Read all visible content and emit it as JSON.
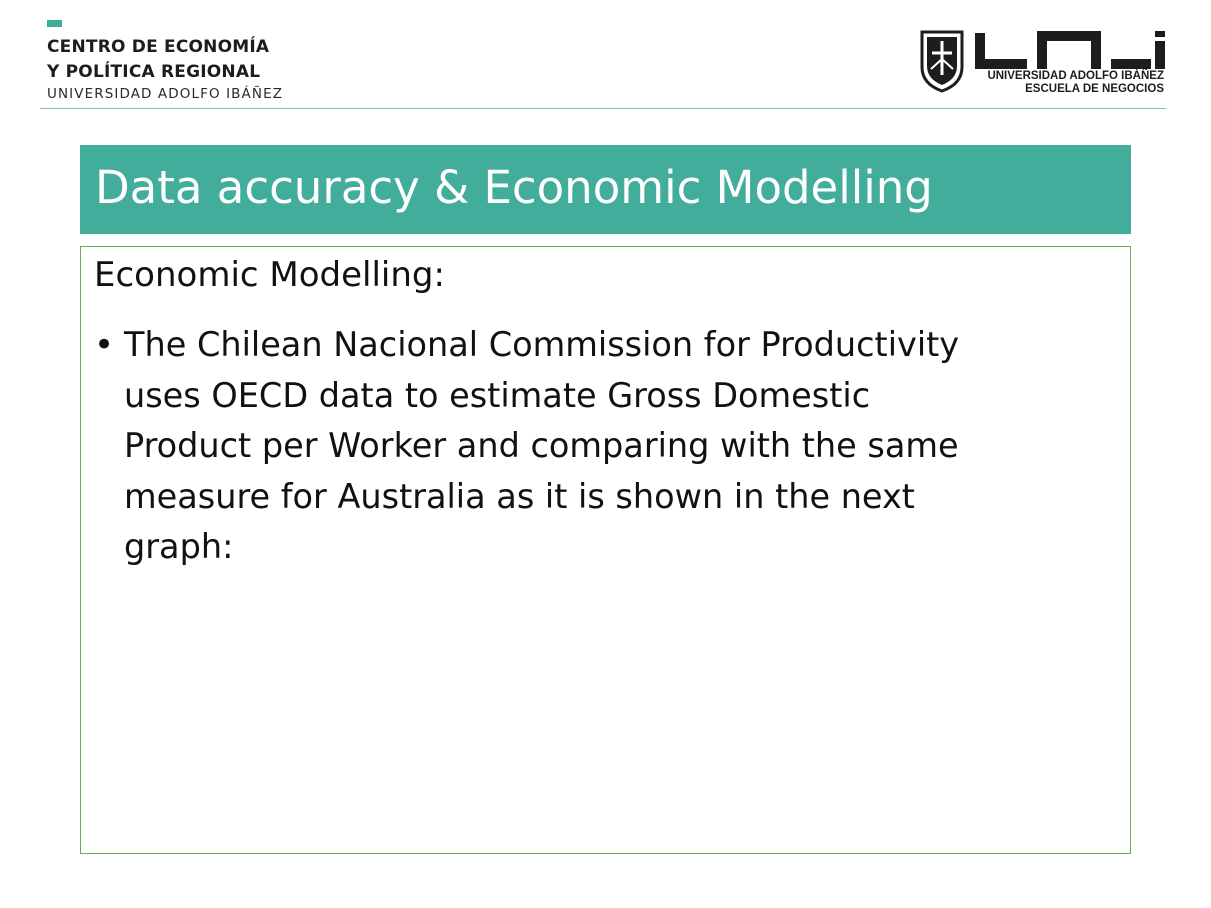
{
  "header": {
    "center_line1": "CENTRO DE ECONOMÍA",
    "center_line2": "Y POLÍTICA REGIONAL",
    "center_university": "UNIVERSIDAD ADOLFO IBÁÑEZ",
    "logo_line1": "UNIVERSIDAD ADOLFO IBÁÑEZ",
    "logo_line2": "ESCUELA DE NEGOCIOS",
    "logo_icon": "university-crest",
    "accent_color": "#41ad9a"
  },
  "slide": {
    "title": "Data accuracy & Economic Modelling",
    "subheading": "Economic Modelling:",
    "bullet_symbol": "•",
    "bullet_lines": [
      "The Chilean Nacional Commission for Productivity",
      "uses OECD data to estimate Gross Domestic",
      "Product per Worker and comparing  with the same",
      "measure for Australia as it is shown in the next",
      "graph:"
    ]
  }
}
